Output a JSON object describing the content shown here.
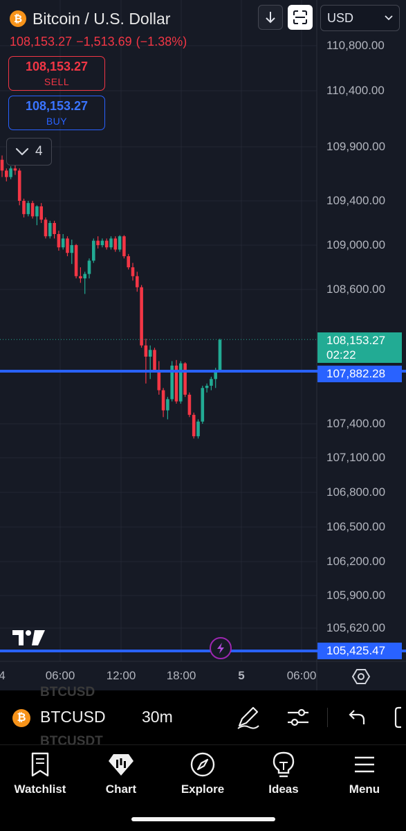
{
  "header": {
    "coin_glyph": "₿",
    "title": "Bitcoin / U.S. Dollar",
    "price": "108,153.27",
    "change": "−1,513.69",
    "change_pct": "(−1.38%)",
    "currency": "USD"
  },
  "trade": {
    "sell_value": "108,153.27",
    "sell_label": "SELL",
    "buy_value": "108,153.27",
    "buy_label": "BUY"
  },
  "indicators": {
    "count": "4"
  },
  "colors": {
    "up": "#22ab94",
    "down": "#f23645",
    "accent": "#2962ff",
    "bg": "#161a25"
  },
  "tags": {
    "current_price": "108,153.27",
    "countdown": "02:22",
    "line_level": "107,882.28",
    "bottom_level": "105,425.47"
  },
  "chart_data": {
    "type": "candlestick",
    "symbol": "BTCUSD",
    "interval": "30m",
    "price_scale_labels": [
      "110,800.00",
      "110,400.00",
      "109,900.00",
      "109,400.00",
      "109,000.00",
      "108,600.00",
      "107,400.00",
      "107,100.00",
      "106,800.00",
      "106,500.00",
      "106,200.00",
      "105,900.00",
      "105,620.00"
    ],
    "time_labels": [
      "4",
      "06:00",
      "12:00",
      "18:00",
      "5",
      "06:00"
    ],
    "horizontal_lines": [
      107882.28,
      105425.47
    ],
    "last_price": 108153.27,
    "candles": [
      [
        109780,
        109820,
        109620,
        109680
      ],
      [
        109680,
        109700,
        109580,
        109620
      ],
      [
        109620,
        109720,
        109600,
        109700
      ],
      [
        109700,
        109760,
        109640,
        109680
      ],
      [
        109680,
        109700,
        109360,
        109400
      ],
      [
        109400,
        109420,
        109250,
        109280
      ],
      [
        109280,
        109400,
        109260,
        109380
      ],
      [
        109380,
        109400,
        109240,
        109260
      ],
      [
        109260,
        109360,
        109180,
        109350
      ],
      [
        109350,
        109380,
        109200,
        109230
      ],
      [
        109230,
        109250,
        109060,
        109080
      ],
      [
        109080,
        109220,
        109060,
        109200
      ],
      [
        109200,
        109220,
        109060,
        109100
      ],
      [
        109100,
        109130,
        108950,
        108980
      ],
      [
        108980,
        109100,
        108960,
        109060
      ],
      [
        109060,
        109080,
        108900,
        108930
      ],
      [
        108930,
        109050,
        108830,
        109000
      ],
      [
        109000,
        109010,
        108700,
        108720
      ],
      [
        108720,
        108800,
        108660,
        108700
      ],
      [
        108700,
        108760,
        108560,
        108740
      ],
      [
        108740,
        108880,
        108700,
        108860
      ],
      [
        108860,
        109060,
        108840,
        109040
      ],
      [
        109040,
        109080,
        108970,
        109000
      ],
      [
        109000,
        109060,
        108980,
        109040
      ],
      [
        109040,
        109060,
        108960,
        108980
      ],
      [
        108980,
        109080,
        108960,
        109060
      ],
      [
        109060,
        109080,
        108940,
        108960
      ],
      [
        108960,
        109090,
        108940,
        109080
      ],
      [
        109080,
        109090,
        108880,
        108900
      ],
      [
        108900,
        108920,
        108780,
        108800
      ],
      [
        108800,
        108840,
        108680,
        108720
      ],
      [
        108720,
        108760,
        108580,
        108620
      ],
      [
        108620,
        108640,
        108080,
        108100
      ],
      [
        108100,
        108160,
        107760,
        108000
      ],
      [
        108000,
        108100,
        107800,
        108060
      ],
      [
        108060,
        108080,
        107860,
        107880
      ],
      [
        107880,
        107960,
        107660,
        107700
      ],
      [
        107700,
        107720,
        107460,
        107520
      ],
      [
        107520,
        107640,
        107440,
        107620
      ],
      [
        107620,
        107960,
        107600,
        107920
      ],
      [
        107920,
        107970,
        107580,
        107600
      ],
      [
        107600,
        107960,
        107580,
        107940
      ],
      [
        107940,
        107950,
        107640,
        107660
      ],
      [
        107660,
        107680,
        107460,
        107480
      ],
      [
        107480,
        107500,
        107270,
        107290
      ],
      [
        107290,
        107440,
        107270,
        107420
      ],
      [
        107420,
        107740,
        107400,
        107720
      ],
      [
        107720,
        107760,
        107680,
        107740
      ],
      [
        107740,
        107820,
        107700,
        107800
      ],
      [
        107800,
        107900,
        107720,
        107880
      ],
      [
        107880,
        108160,
        107860,
        108150
      ]
    ]
  },
  "symbol_bar": {
    "coin_glyph": "₿",
    "symbol": "BTCUSD",
    "interval": "30m",
    "ghost_1": "BTCUSD",
    "ghost_2": "BTCUSDT"
  },
  "tabs": [
    {
      "label": "Watchlist"
    },
    {
      "label": "Chart"
    },
    {
      "label": "Explore"
    },
    {
      "label": "Ideas"
    },
    {
      "label": "Menu"
    }
  ]
}
